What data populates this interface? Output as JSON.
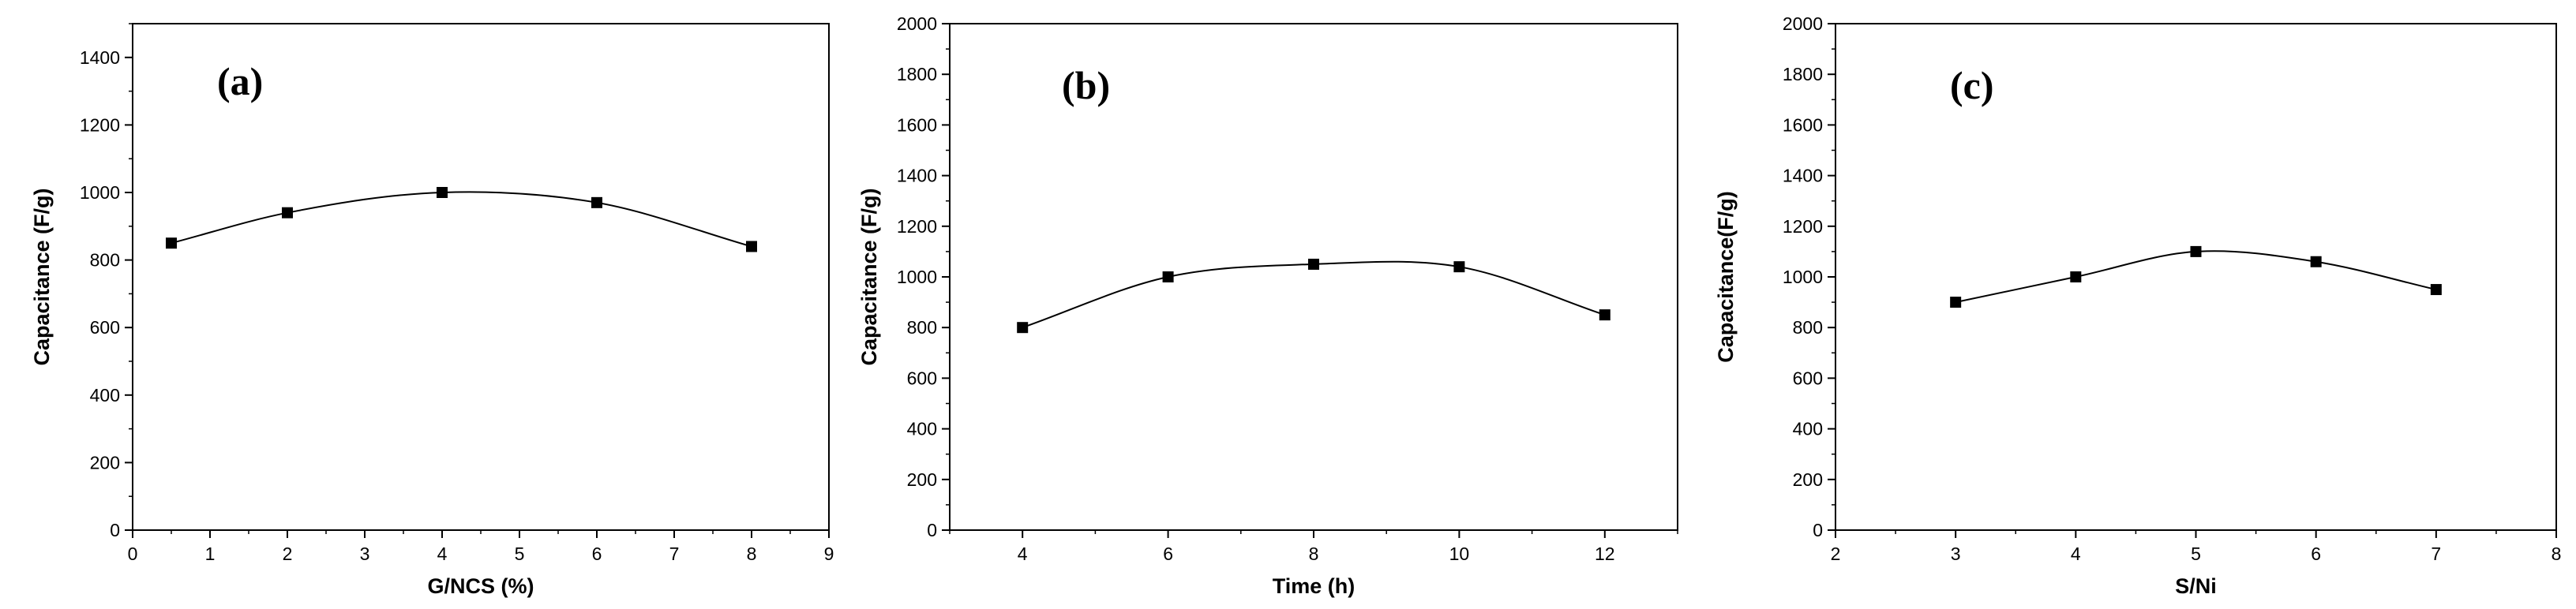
{
  "chart_data": [
    {
      "type": "line",
      "panel_label": "(a)",
      "title": "",
      "xlabel": "G/NCS (%)",
      "ylabel": "Capacitance (F/g)",
      "xlim": [
        0,
        9
      ],
      "ylim": [
        0,
        1500
      ],
      "xticks": [
        0,
        1,
        2,
        3,
        4,
        5,
        6,
        7,
        8,
        9
      ],
      "yticks": [
        0,
        200,
        400,
        600,
        800,
        1000,
        1200,
        1400
      ],
      "series": [
        {
          "name": "Capacitance",
          "marker": "square",
          "color": "#000000",
          "x": [
            0.5,
            2,
            4,
            6,
            8
          ],
          "y": [
            850,
            940,
            1000,
            970,
            840
          ]
        }
      ],
      "grid": false,
      "legend": null
    },
    {
      "type": "line",
      "panel_label": "(b)",
      "title": "",
      "xlabel": "Time (h)",
      "ylabel": "Capacitance (F/g)",
      "xlim": [
        3,
        13
      ],
      "ylim": [
        0,
        2000
      ],
      "xticks": [
        4,
        6,
        8,
        10,
        12
      ],
      "yticks": [
        0,
        200,
        400,
        600,
        800,
        1000,
        1200,
        1400,
        1600,
        1800,
        2000
      ],
      "series": [
        {
          "name": "Capacitance",
          "marker": "square",
          "color": "#000000",
          "x": [
            4,
            6,
            8,
            10,
            12
          ],
          "y": [
            800,
            1000,
            1050,
            1040,
            850
          ]
        }
      ],
      "grid": false,
      "legend": null
    },
    {
      "type": "line",
      "panel_label": "(c)",
      "title": "",
      "xlabel": "S/Ni",
      "ylabel": "Capacitance(F/g)",
      "xlim": [
        2,
        8
      ],
      "ylim": [
        0,
        2000
      ],
      "xticks": [
        2,
        3,
        4,
        5,
        6,
        7,
        8
      ],
      "yticks": [
        0,
        200,
        400,
        600,
        800,
        1000,
        1200,
        1400,
        1600,
        1800,
        2000
      ],
      "series": [
        {
          "name": "Capacitance",
          "marker": "square",
          "color": "#000000",
          "x": [
            3,
            4,
            5,
            6,
            7
          ],
          "y": [
            900,
            1000,
            1100,
            1060,
            950
          ]
        }
      ],
      "grid": false,
      "legend": null
    }
  ]
}
